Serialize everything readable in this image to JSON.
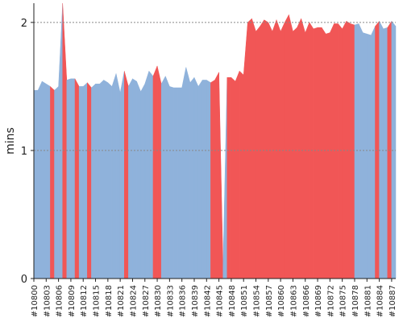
{
  "chart_data": {
    "type": "area",
    "ylabel": "mins",
    "ylim": [
      0,
      2.15
    ],
    "yticks": [
      0,
      1,
      2
    ],
    "grid": "horizontal dashed",
    "categories": [
      "#10800",
      "#10801",
      "#10802",
      "#10803",
      "#10804",
      "#10805",
      "#10806",
      "#10807",
      "#10808",
      "#10809",
      "#10810",
      "#10811",
      "#10812",
      "#10813",
      "#10814",
      "#10815",
      "#10816",
      "#10817",
      "#10818",
      "#10819",
      "#10820",
      "#10821",
      "#10822",
      "#10823",
      "#10824",
      "#10825",
      "#10826",
      "#10827",
      "#10828",
      "#10829",
      "#10830",
      "#10831",
      "#10832",
      "#10833",
      "#10834",
      "#10835",
      "#10836",
      "#10837",
      "#10838",
      "#10839",
      "#10840",
      "#10841",
      "#10842",
      "#10843",
      "#10844",
      "#10845",
      "#10846",
      "#10847",
      "#10848",
      "#10849",
      "#10850",
      "#10851",
      "#10852",
      "#10853",
      "#10854",
      "#10855",
      "#10856",
      "#10857",
      "#10858",
      "#10859",
      "#10860",
      "#10861",
      "#10862",
      "#10863",
      "#10864",
      "#10865",
      "#10866",
      "#10867",
      "#10868",
      "#10869",
      "#10870",
      "#10871",
      "#10872",
      "#10873",
      "#10874",
      "#10875",
      "#10876",
      "#10877",
      "#10878",
      "#10879",
      "#10880",
      "#10881",
      "#10882",
      "#10883",
      "#10884",
      "#10885",
      "#10886",
      "#10887",
      "#10888"
    ],
    "xtick_labels": [
      "#10800",
      "#10803",
      "#10806",
      "#10809",
      "#10812",
      "#10815",
      "#10818",
      "#10821",
      "#10824",
      "#10827",
      "#10830",
      "#10833",
      "#10836",
      "#10839",
      "#10842",
      "#10845",
      "#10848",
      "#10851",
      "#10854",
      "#10857",
      "#10860",
      "#10863",
      "#10866",
      "#10869",
      "#10872",
      "#10875",
      "#10878",
      "#10881",
      "#10884",
      "#10887"
    ],
    "values": [
      1.47,
      1.47,
      1.54,
      1.52,
      1.5,
      1.47,
      1.5,
      2.2,
      1.55,
      1.56,
      1.56,
      1.5,
      1.5,
      1.53,
      1.49,
      1.52,
      1.52,
      1.55,
      1.53,
      1.5,
      1.6,
      1.45,
      1.62,
      1.5,
      1.56,
      1.54,
      1.46,
      1.52,
      1.62,
      1.58,
      1.66,
      1.52,
      1.58,
      1.5,
      1.49,
      1.49,
      1.49,
      1.65,
      1.53,
      1.57,
      1.5,
      1.55,
      1.55,
      1.53,
      1.55,
      1.61,
      0.1,
      1.57,
      1.57,
      1.54,
      1.62,
      1.59,
      2.0,
      2.03,
      1.93,
      1.97,
      2.02,
      2.0,
      1.93,
      2.02,
      1.93,
      2.0,
      2.06,
      1.93,
      1.96,
      2.03,
      1.92,
      2.0,
      1.95,
      1.96,
      1.96,
      1.91,
      1.92,
      1.99,
      1.99,
      1.95,
      2.01,
      1.99,
      1.98,
      1.99,
      1.92,
      1.91,
      1.9,
      1.97,
      2.01,
      1.95,
      1.96,
      2.01,
      1.97
    ],
    "highlight_indices": [
      4,
      7,
      10,
      13,
      22,
      29,
      30,
      43,
      44,
      45,
      47,
      48,
      49,
      50,
      51,
      52,
      53,
      54,
      55,
      56,
      57,
      58,
      59,
      60,
      61,
      62,
      63,
      64,
      65,
      66,
      67,
      68,
      69,
      70,
      71,
      72,
      73,
      74,
      75,
      76,
      77,
      83,
      86
    ],
    "colors": {
      "base": "#8fb2db",
      "highlight": "#f15656",
      "grid": "#888888",
      "axis": "#222222"
    }
  }
}
